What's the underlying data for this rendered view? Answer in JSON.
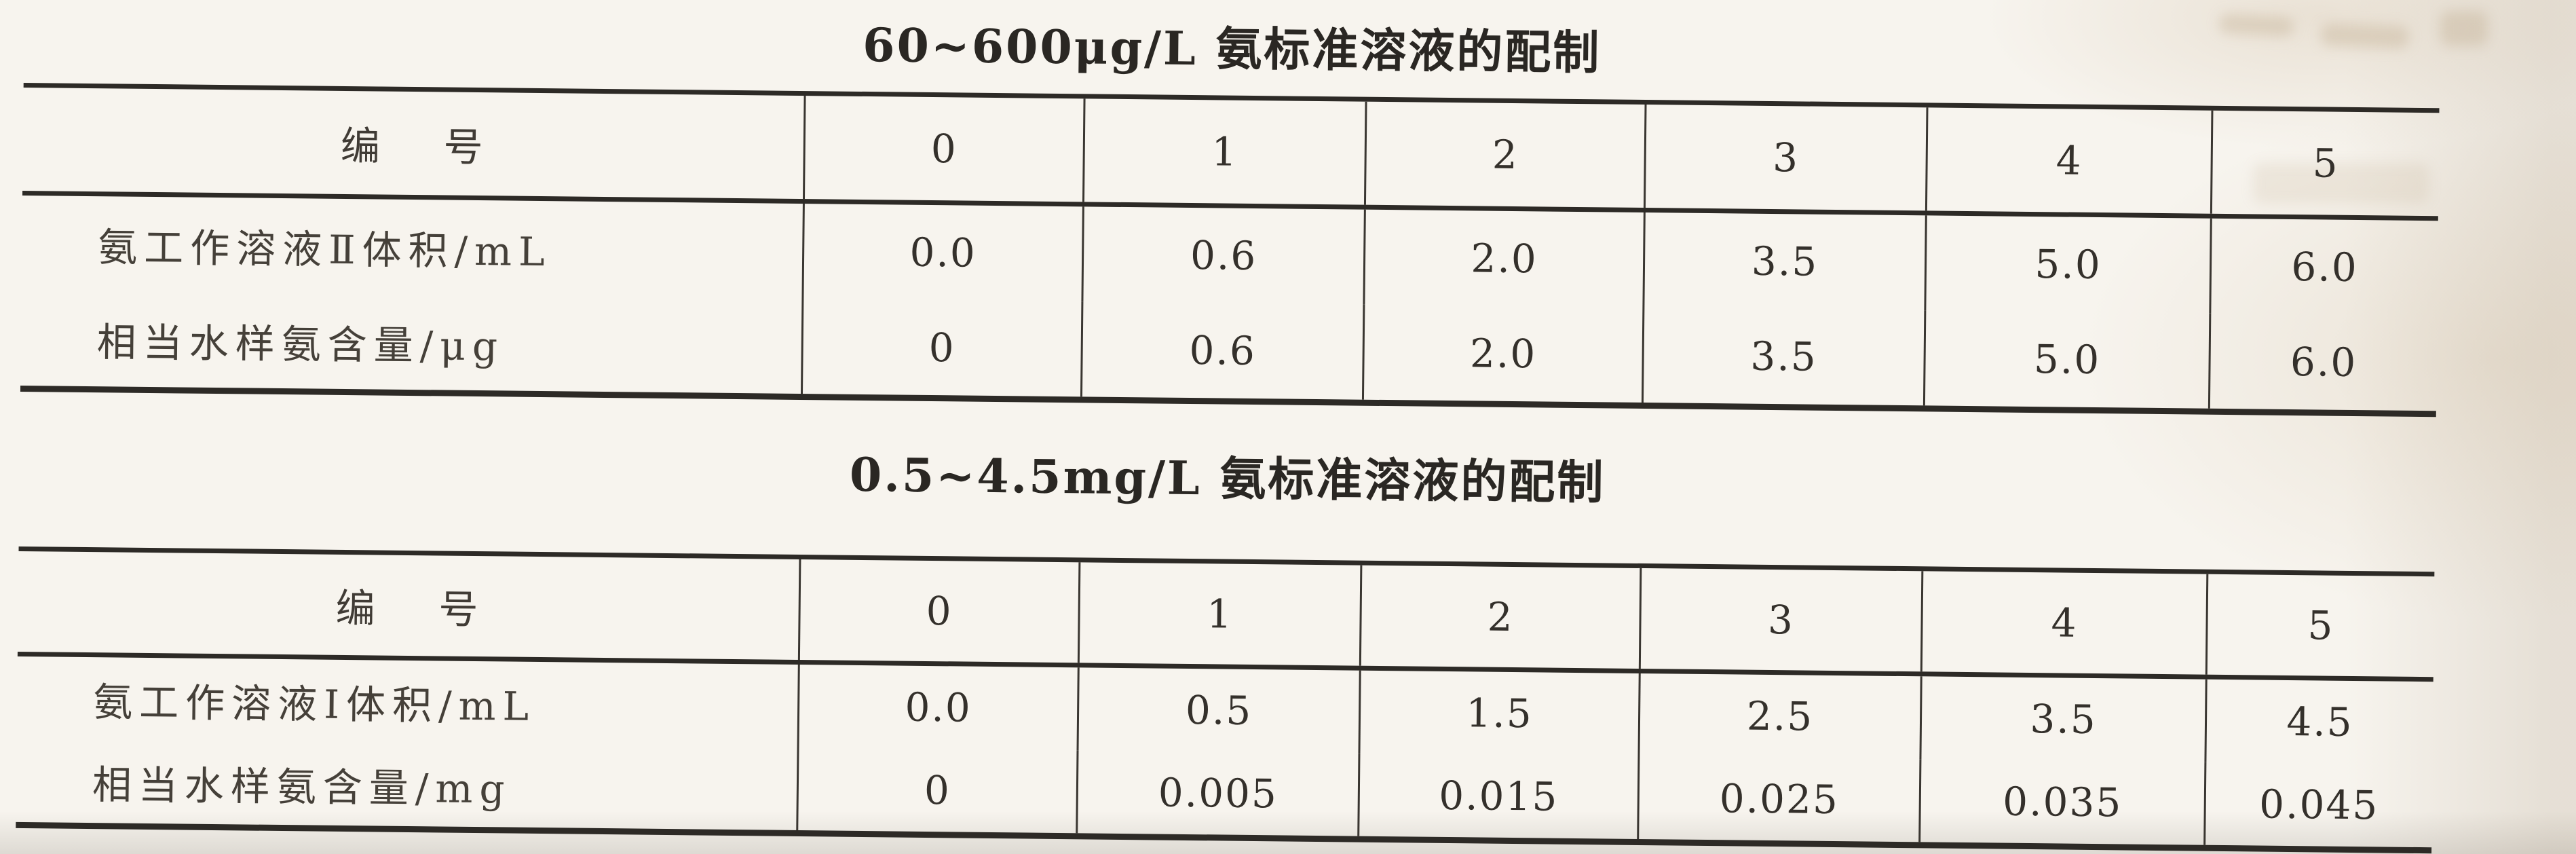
{
  "page": {
    "background": "#f7f4ee",
    "ink": "#2d2a26"
  },
  "tables": [
    {
      "title": "60~600μg/L 氨标准溶液的配制",
      "corner_label": "编    号",
      "column_headers": [
        "0",
        "1",
        "2",
        "3",
        "4",
        "5"
      ],
      "rows": [
        {
          "label": "氨工作溶液Ⅱ体积/mL",
          "values": [
            "0.0",
            "0.6",
            "2.0",
            "3.5",
            "5.0",
            "6.0"
          ]
        },
        {
          "label": "相当水样氨含量/μg",
          "values": [
            "0",
            "0.6",
            "2.0",
            "3.5",
            "5.0",
            "6.0"
          ]
        }
      ]
    },
    {
      "title": "0.5~4.5mg/L 氨标准溶液的配制",
      "corner_label": "编    号",
      "column_headers": [
        "0",
        "1",
        "2",
        "3",
        "4",
        "5"
      ],
      "rows": [
        {
          "label": "氨工作溶液Ⅰ体积/mL",
          "values": [
            "0.0",
            "0.5",
            "1.5",
            "2.5",
            "3.5",
            "4.5"
          ]
        },
        {
          "label": "相当水样氨含量/mg",
          "values": [
            "0",
            "0.005",
            "0.015",
            "0.025",
            "0.035",
            "0.045"
          ]
        }
      ]
    }
  ]
}
